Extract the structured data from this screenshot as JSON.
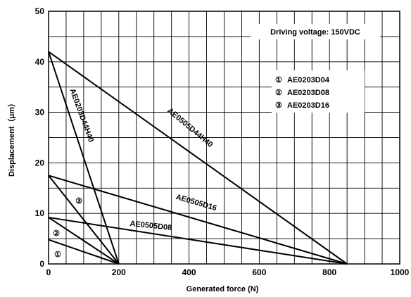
{
  "chart_data": {
    "type": "line",
    "xlabel": "Generated force  (N)",
    "ylabel": "Displacement（μm）",
    "xlim": [
      0,
      1000
    ],
    "ylim": [
      0,
      50
    ],
    "x_ticks": [
      "0",
      "200",
      "400",
      "600",
      "800",
      "1000"
    ],
    "y_ticks": [
      "0",
      "10",
      "20",
      "30",
      "40",
      "50"
    ],
    "grid": true,
    "annotation": "Driving voltage: 150VDC",
    "legend": [
      {
        "marker": "①",
        "label": "AE0203D04"
      },
      {
        "marker": "②",
        "label": "AE0203D08"
      },
      {
        "marker": "③",
        "label": "AE0203D16"
      }
    ],
    "series": [
      {
        "name": "AE0505D44H40",
        "x": [
          0,
          850
        ],
        "y": [
          42,
          0
        ]
      },
      {
        "name": "AE0203D44H40",
        "x": [
          0,
          200
        ],
        "y": [
          42,
          0
        ]
      },
      {
        "name": "AE0505D16",
        "x": [
          0,
          850
        ],
        "y": [
          17.5,
          0
        ]
      },
      {
        "name": "AE0505D08",
        "x": [
          0,
          850
        ],
        "y": [
          9.2,
          0
        ]
      },
      {
        "name": "③",
        "x": [
          0,
          200
        ],
        "y": [
          17.5,
          0
        ]
      },
      {
        "name": "②",
        "x": [
          0,
          200
        ],
        "y": [
          9.2,
          0
        ]
      },
      {
        "name": "①",
        "x": [
          0,
          200
        ],
        "y": [
          4.8,
          0
        ]
      }
    ]
  }
}
